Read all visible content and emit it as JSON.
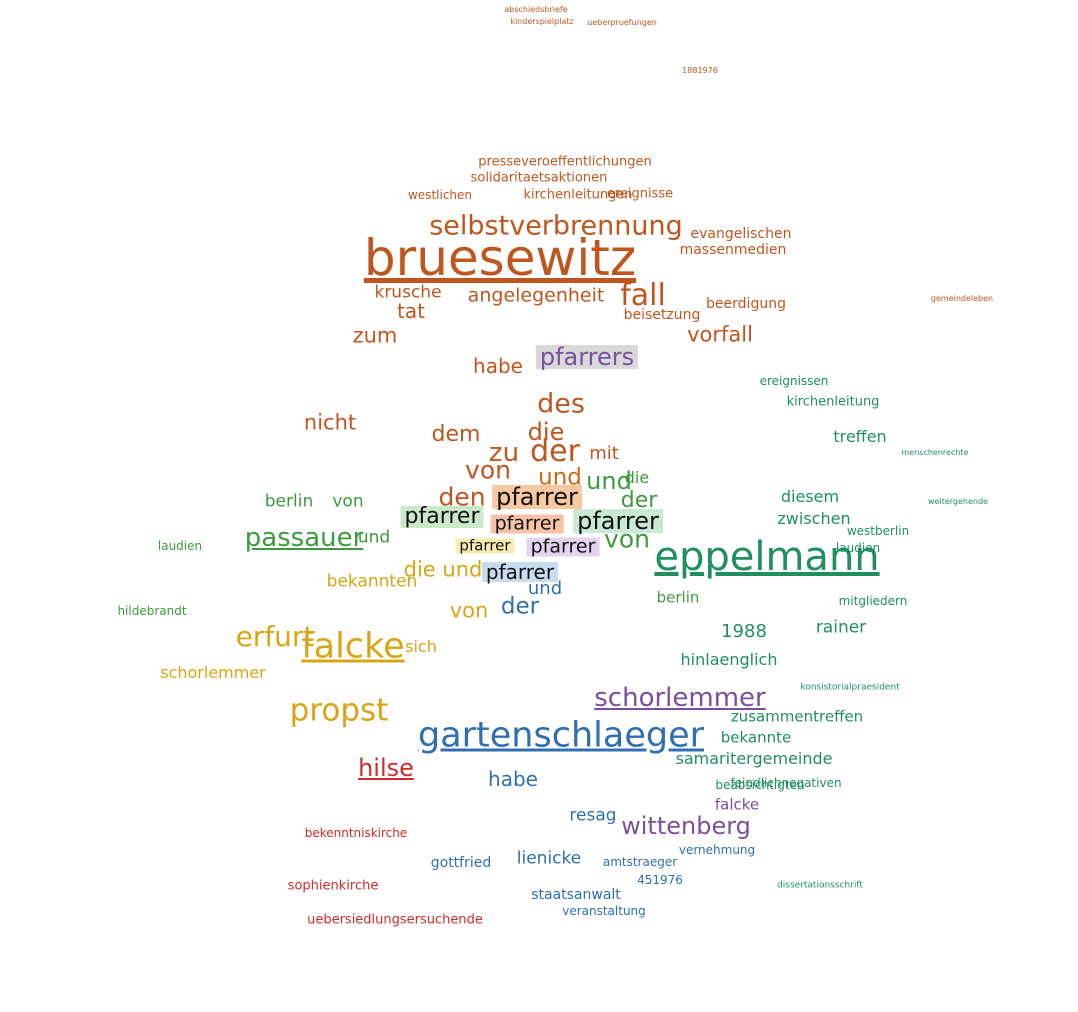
{
  "colors": {
    "brown": "#c0561f",
    "orange_dark": "#c96a12",
    "gold": "#d9a514",
    "green": "#3f9a3f",
    "teal": "#1f8f5f",
    "blue": "#2f6fb0",
    "purple": "#7b4f9e",
    "red": "#cf2b2b",
    "black": "#111111"
  },
  "words": [
    {
      "t": "bruesewitz",
      "c": "brown"
    },
    {
      "t": "eppelmann",
      "c": "teal"
    },
    {
      "t": "gartenschlaeger",
      "c": "blue"
    },
    {
      "t": "selbstverbrennung",
      "c": "brown"
    },
    {
      "t": "schorlemmer",
      "c": "purple"
    },
    {
      "t": "falcke",
      "c": "gold"
    },
    {
      "t": "propst",
      "c": "gold"
    },
    {
      "t": "erfurt",
      "c": "gold"
    },
    {
      "t": "passauer",
      "c": "green"
    },
    {
      "t": "pfarrers",
      "c": "purple"
    },
    {
      "t": "wittenberg",
      "c": "purple"
    },
    {
      "t": "hilse",
      "c": "red"
    },
    {
      "t": "fall",
      "c": "brown"
    },
    {
      "t": "der",
      "c": "brown"
    },
    {
      "t": "des",
      "c": "brown"
    },
    {
      "t": "die",
      "c": "brown"
    },
    {
      "t": "zu",
      "c": "brown"
    },
    {
      "t": "von",
      "c": "brown"
    },
    {
      "t": "den",
      "c": "brown"
    },
    {
      "t": "und",
      "c": "orange_dark"
    },
    {
      "t": "dem",
      "c": "brown"
    },
    {
      "t": "mit",
      "c": "brown"
    },
    {
      "t": "nicht",
      "c": "brown"
    },
    {
      "t": "zum",
      "c": "brown"
    },
    {
      "t": "tat",
      "c": "brown"
    },
    {
      "t": "vorfall",
      "c": "brown"
    },
    {
      "t": "habe",
      "c": "brown"
    },
    {
      "t": "angelegenheit",
      "c": "brown"
    },
    {
      "t": "krusche",
      "c": "brown"
    },
    {
      "t": "pfarrer",
      "c": "black"
    },
    {
      "t": "von",
      "c": "green"
    },
    {
      "t": "und",
      "c": "green"
    },
    {
      "t": "der",
      "c": "green"
    },
    {
      "t": "die",
      "c": "green"
    },
    {
      "t": "berlin",
      "c": "green"
    },
    {
      "t": "bekannten",
      "c": "gold"
    },
    {
      "t": "die und",
      "c": "gold"
    },
    {
      "t": "von",
      "c": "gold"
    },
    {
      "t": "sich",
      "c": "gold"
    },
    {
      "t": "schorlemmer",
      "c": "gold"
    },
    {
      "t": "der",
      "c": "blue"
    },
    {
      "t": "und",
      "c": "blue"
    },
    {
      "t": "habe",
      "c": "blue"
    },
    {
      "t": "lienicke",
      "c": "blue"
    },
    {
      "t": "resag",
      "c": "blue"
    },
    {
      "t": "1988",
      "c": "teal"
    },
    {
      "t": "rainer",
      "c": "teal"
    },
    {
      "t": "treffen",
      "c": "teal"
    },
    {
      "t": "zwischen",
      "c": "teal"
    },
    {
      "t": "diesem",
      "c": "teal"
    },
    {
      "t": "hinlaenglich",
      "c": "teal"
    },
    {
      "t": "samaritergemeinde",
      "c": "teal"
    },
    {
      "t": "zusammentreffen",
      "c": "teal"
    },
    {
      "t": "bekannte",
      "c": "teal"
    },
    {
      "t": "falcke",
      "c": "purple"
    },
    {
      "t": "gottfried",
      "c": "blue"
    },
    {
      "t": "staatsanwalt",
      "c": "blue"
    },
    {
      "t": "abschiedsbriefe",
      "c": "brown"
    },
    {
      "t": "kinderspielplatz",
      "c": "brown"
    },
    {
      "t": "ueberpruefungen",
      "c": "brown"
    },
    {
      "t": "1881976",
      "c": "brown"
    },
    {
      "t": "presseveroeffentlichungen",
      "c": "brown"
    },
    {
      "t": "solidaritaetsaktionen",
      "c": "brown"
    },
    {
      "t": "kirchenleitungen",
      "c": "brown"
    },
    {
      "t": "evangelischen",
      "c": "brown"
    },
    {
      "t": "massenmedien",
      "c": "brown"
    },
    {
      "t": "westlichen",
      "c": "brown"
    },
    {
      "t": "ereignisse",
      "c": "brown"
    },
    {
      "t": "beerdigung",
      "c": "brown"
    },
    {
      "t": "beisetzung",
      "c": "brown"
    },
    {
      "t": "kirchenleitung",
      "c": "teal"
    },
    {
      "t": "ereignissen",
      "c": "teal"
    },
    {
      "t": "mitgliedern",
      "c": "teal"
    },
    {
      "t": "westberlin",
      "c": "teal"
    },
    {
      "t": "laudien",
      "c": "teal"
    },
    {
      "t": "hildebrandt",
      "c": "green"
    },
    {
      "t": "sophienkirche",
      "c": "green"
    },
    {
      "t": "uebersiedlungsersuchende",
      "c": "red"
    },
    {
      "t": "bekenntniskirche",
      "c": "red"
    },
    {
      "t": "veranstaltung",
      "c": "red"
    },
    {
      "t": "451976",
      "c": "blue"
    },
    {
      "t": "vernehmung",
      "c": "blue"
    },
    {
      "t": "amtstraeger",
      "c": "blue"
    },
    {
      "t": "beabsichtigten",
      "c": "blue"
    },
    {
      "t": "feindlichnegativen",
      "c": "teal"
    },
    {
      "t": "konsistorialpraesident",
      "c": "teal"
    },
    {
      "t": "dissertationsschrift",
      "c": "teal"
    },
    {
      "t": "gemeindeleben",
      "c": "brown"
    },
    {
      "t": "weitergehende",
      "c": "teal"
    },
    {
      "t": "menschenrechte",
      "c": "teal"
    }
  ]
}
